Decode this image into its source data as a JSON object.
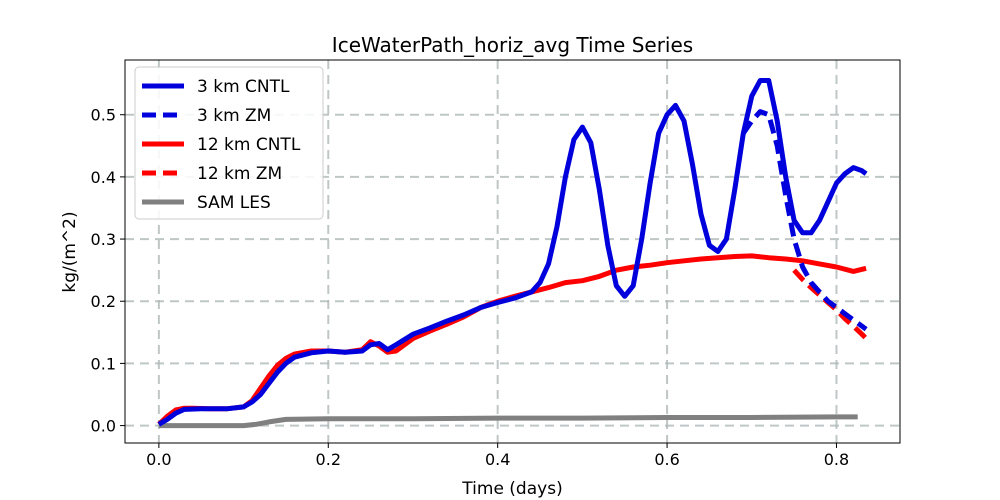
{
  "chart_data": {
    "type": "line",
    "title": "IceWaterPath_horiz_avg Time Series",
    "xlabel": "Time (days)",
    "ylabel": "kg/(m^2)",
    "xlim": [
      -0.04,
      0.875
    ],
    "ylim": [
      -0.028,
      0.588
    ],
    "xticks": [
      0.0,
      0.2,
      0.4,
      0.6,
      0.8
    ],
    "xtick_labels": [
      "0.0",
      "0.2",
      "0.4",
      "0.6",
      "0.8"
    ],
    "yticks": [
      0.0,
      0.1,
      0.2,
      0.3,
      0.4,
      0.5
    ],
    "ytick_labels": [
      "0.0",
      "0.1",
      "0.2",
      "0.3",
      "0.4",
      "0.5"
    ],
    "grid": true,
    "legend_position": "top-left",
    "series": [
      {
        "name": "3 km CNTL",
        "color": "#0000dd",
        "style": "solid",
        "x": [
          0.0,
          0.01,
          0.02,
          0.03,
          0.05,
          0.08,
          0.1,
          0.11,
          0.12,
          0.13,
          0.14,
          0.15,
          0.16,
          0.18,
          0.2,
          0.22,
          0.24,
          0.25,
          0.26,
          0.27,
          0.28,
          0.3,
          0.32,
          0.34,
          0.36,
          0.38,
          0.4,
          0.42,
          0.44,
          0.45,
          0.46,
          0.47,
          0.48,
          0.49,
          0.5,
          0.51,
          0.52,
          0.53,
          0.54,
          0.55,
          0.56,
          0.57,
          0.58,
          0.59,
          0.6,
          0.61,
          0.62,
          0.63,
          0.64,
          0.65,
          0.66,
          0.67,
          0.68,
          0.69,
          0.7,
          0.71,
          0.72,
          0.73,
          0.74,
          0.75,
          0.76,
          0.77,
          0.78,
          0.79,
          0.8,
          0.81,
          0.82,
          0.83,
          0.835
        ],
        "y": [
          0.002,
          0.01,
          0.02,
          0.026,
          0.027,
          0.027,
          0.03,
          0.038,
          0.05,
          0.068,
          0.086,
          0.1,
          0.11,
          0.117,
          0.12,
          0.118,
          0.12,
          0.13,
          0.132,
          0.122,
          0.13,
          0.147,
          0.157,
          0.168,
          0.178,
          0.19,
          0.198,
          0.205,
          0.215,
          0.23,
          0.26,
          0.32,
          0.4,
          0.46,
          0.48,
          0.455,
          0.38,
          0.29,
          0.225,
          0.208,
          0.225,
          0.3,
          0.39,
          0.47,
          0.5,
          0.515,
          0.49,
          0.42,
          0.34,
          0.29,
          0.28,
          0.3,
          0.38,
          0.47,
          0.53,
          0.555,
          0.555,
          0.49,
          0.4,
          0.33,
          0.31,
          0.31,
          0.33,
          0.36,
          0.39,
          0.405,
          0.415,
          0.41,
          0.405
        ]
      },
      {
        "name": "3 km ZM",
        "color": "#0000dd",
        "style": "dashed",
        "x": [
          0.69,
          0.7,
          0.71,
          0.72,
          0.73,
          0.74,
          0.75,
          0.76,
          0.77,
          0.78,
          0.79,
          0.8,
          0.81,
          0.82,
          0.83,
          0.835
        ],
        "y": [
          0.47,
          0.49,
          0.505,
          0.5,
          0.45,
          0.37,
          0.3,
          0.255,
          0.23,
          0.215,
          0.2,
          0.19,
          0.18,
          0.17,
          0.16,
          0.155
        ]
      },
      {
        "name": "12 km CNTL",
        "color": "#ff0000",
        "style": "solid",
        "x": [
          0.0,
          0.01,
          0.02,
          0.03,
          0.04,
          0.06,
          0.08,
          0.1,
          0.11,
          0.12,
          0.13,
          0.14,
          0.15,
          0.16,
          0.18,
          0.2,
          0.22,
          0.24,
          0.25,
          0.26,
          0.27,
          0.28,
          0.3,
          0.32,
          0.34,
          0.36,
          0.38,
          0.4,
          0.42,
          0.44,
          0.46,
          0.48,
          0.5,
          0.52,
          0.54,
          0.56,
          0.58,
          0.6,
          0.62,
          0.64,
          0.66,
          0.68,
          0.7,
          0.72,
          0.74,
          0.76,
          0.78,
          0.8,
          0.82,
          0.835
        ],
        "y": [
          0.002,
          0.015,
          0.025,
          0.028,
          0.028,
          0.027,
          0.027,
          0.03,
          0.04,
          0.06,
          0.08,
          0.097,
          0.108,
          0.115,
          0.12,
          0.12,
          0.118,
          0.122,
          0.135,
          0.128,
          0.118,
          0.12,
          0.14,
          0.152,
          0.163,
          0.175,
          0.19,
          0.2,
          0.208,
          0.215,
          0.222,
          0.23,
          0.233,
          0.24,
          0.25,
          0.255,
          0.258,
          0.262,
          0.265,
          0.268,
          0.27,
          0.272,
          0.273,
          0.27,
          0.268,
          0.265,
          0.26,
          0.255,
          0.248,
          0.253
        ]
      },
      {
        "name": "12 km ZM",
        "color": "#ff0000",
        "style": "dashed",
        "x": [
          0.75,
          0.76,
          0.77,
          0.78,
          0.79,
          0.8,
          0.81,
          0.82,
          0.83,
          0.835
        ],
        "y": [
          0.25,
          0.235,
          0.222,
          0.21,
          0.198,
          0.186,
          0.172,
          0.16,
          0.147,
          0.14
        ]
      },
      {
        "name": "SAM LES",
        "color": "#808080",
        "style": "solid",
        "x": [
          0.0,
          0.05,
          0.1,
          0.115,
          0.13,
          0.15,
          0.2,
          0.3,
          0.4,
          0.5,
          0.6,
          0.7,
          0.8,
          0.825
        ],
        "y": [
          0.0,
          0.0,
          0.0,
          0.002,
          0.006,
          0.01,
          0.011,
          0.011,
          0.012,
          0.012,
          0.013,
          0.013,
          0.014,
          0.014
        ]
      }
    ]
  }
}
